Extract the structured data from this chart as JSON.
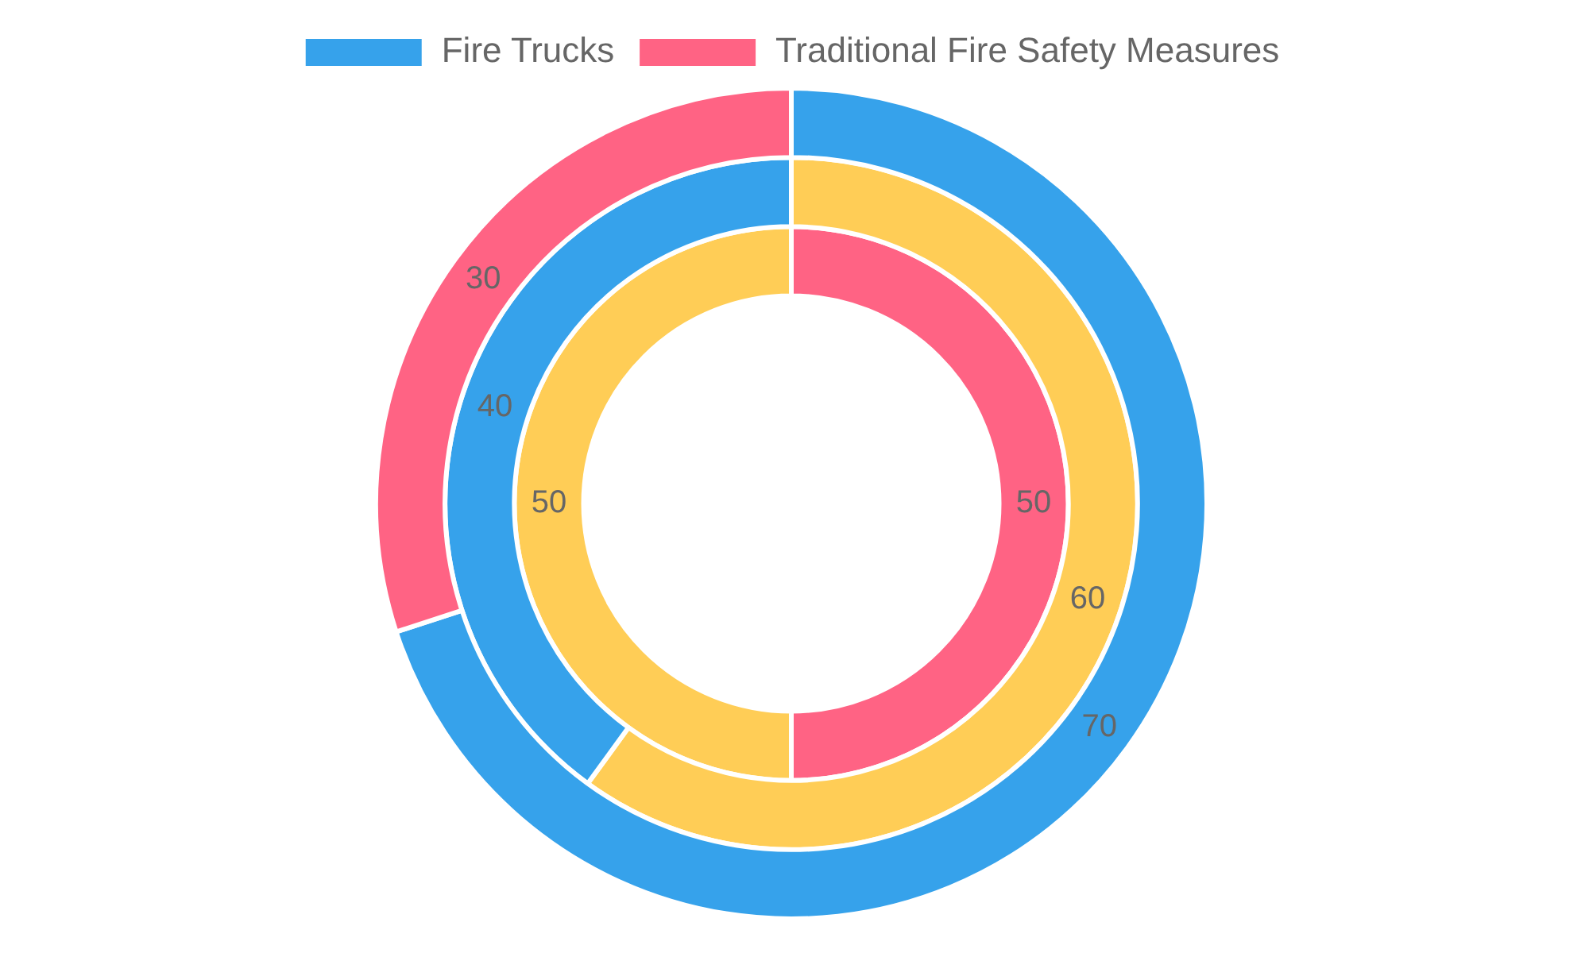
{
  "chart_data": {
    "type": "donut",
    "categories": [
      "Fire Trucks",
      "Traditional Fire Safety Measures"
    ],
    "series": [
      {
        "values": [
          70,
          30
        ],
        "colors": [
          "#36a2eb",
          "#ff6384"
        ]
      },
      {
        "values": [
          60,
          40
        ],
        "colors": [
          "#ffcd56",
          "#36a2eb"
        ]
      },
      {
        "values": [
          50,
          50
        ],
        "colors": [
          "#ff6384",
          "#ffcd56"
        ]
      }
    ],
    "data_labels": true,
    "legend": "top"
  }
}
